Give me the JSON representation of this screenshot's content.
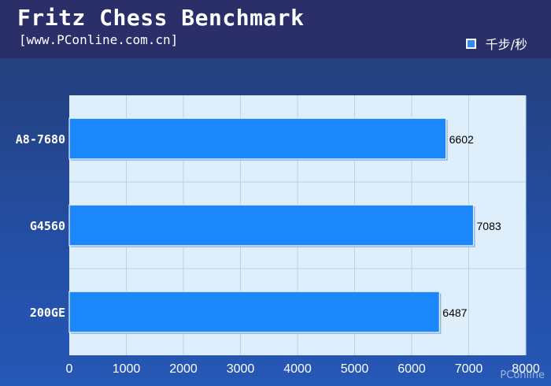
{
  "header": {
    "title": "Fritz Chess Benchmark",
    "subtitle": "[www.PConline.com.cn]"
  },
  "colors": {
    "bar": "#1c86fb",
    "plot_bg": "#dfeefb",
    "grid": "#b6d3ee",
    "axis_text": "#ffffff",
    "value_text": "#000000"
  },
  "chart_data": {
    "type": "bar",
    "orientation": "horizontal",
    "categories": [
      "A8-7680",
      "G4560",
      "200GE"
    ],
    "series": [
      {
        "name": "千步/秒",
        "values": [
          6602,
          7083,
          6487
        ]
      }
    ],
    "xlim": [
      0,
      8000
    ],
    "xticks": [
      0,
      1000,
      2000,
      3000,
      4000,
      5000,
      6000,
      7000,
      8000
    ],
    "grid": true,
    "legend_position": "top-right",
    "data_labels": true
  },
  "watermark": "PConline"
}
